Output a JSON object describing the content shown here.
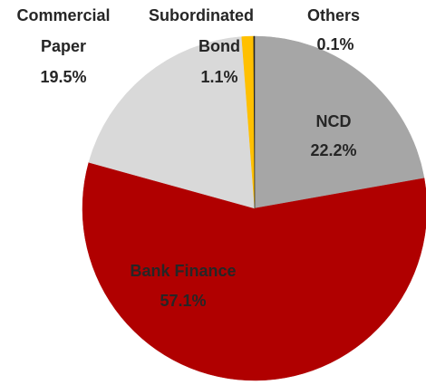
{
  "chart_data": {
    "type": "pie",
    "categories": [
      "NCD",
      "Bank Finance",
      "Commercial Paper",
      "Subordinated Bond",
      "Others"
    ],
    "values": [
      22.2,
      57.1,
      19.5,
      1.1,
      0.1
    ],
    "value_labels": [
      "22.2%",
      "57.1%",
      "19.5%",
      "1.1%",
      "0.1%"
    ],
    "colors": [
      "#a6a6a6",
      "#b00000",
      "#d9d9d9",
      "#ffc000",
      "#262626"
    ]
  }
}
